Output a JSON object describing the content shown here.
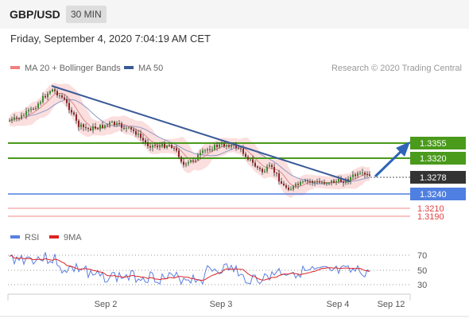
{
  "header": {
    "pair": "GBP/USD",
    "timeframe": "30 MIN"
  },
  "datetime": "Friday, September 4, 2020 7:04:19 AM CET",
  "legend": {
    "ma20": {
      "label": "MA 20 + Bollinger Bands",
      "color": "#f08080"
    },
    "ma50": {
      "label": "MA 50",
      "color": "#3a5a98"
    }
  },
  "credit": "Research © 2020 Trading Central",
  "price_levels": [
    {
      "label": "1.3355",
      "kind": "resistance",
      "color": "#4a9a1c"
    },
    {
      "label": "1.3320",
      "kind": "resistance",
      "color": "#4a9a1c"
    },
    {
      "label": "1.3278",
      "kind": "last",
      "color": "#333333"
    },
    {
      "label": "1.3240",
      "kind": "support",
      "color": "#4f7fe0"
    },
    {
      "label": "1.3210",
      "kind": "target",
      "color": "#e04040"
    },
    {
      "label": "1.3190",
      "kind": "target",
      "color": "#e04040"
    }
  ],
  "rsi_legend": {
    "rsi": {
      "label": "RSI",
      "color": "#5a7fdf"
    },
    "ma9": {
      "label": "9MA",
      "color": "#dd2222"
    }
  },
  "rsi_levels": [
    "70",
    "50",
    "30"
  ],
  "x_labels": [
    "Sep 2",
    "Sep 3",
    "Sep 4",
    "Sep 12"
  ]
}
